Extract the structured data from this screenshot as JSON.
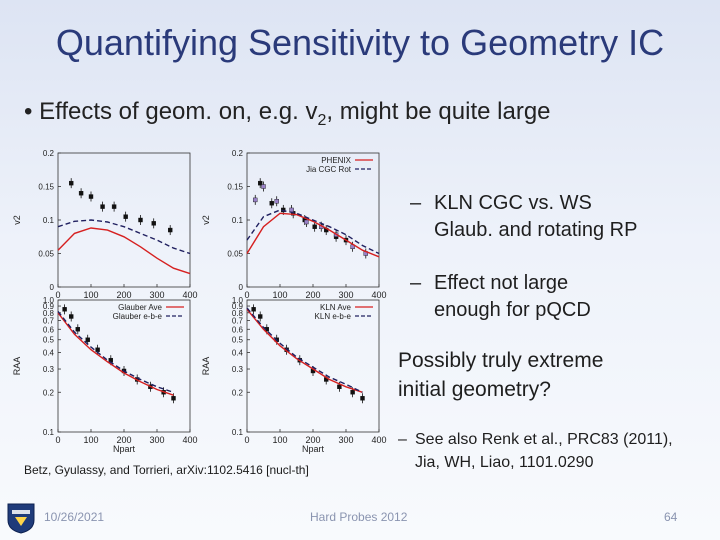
{
  "slide": {
    "title": "Quantifying Sensitivity to Geometry IC",
    "bullet": {
      "text_before": "Effects of geom. on, e.g. v",
      "subscript": "2",
      "text_after": ", might be quite large",
      "marker": "•"
    },
    "dash_items": [
      {
        "marker": "–",
        "lines": [
          "KLN CGC vs. WS",
          "Glaub. and rotating RP"
        ]
      },
      {
        "marker": "–",
        "lines": [
          "Effect not large",
          "enough for pQCD"
        ]
      }
    ],
    "para_lines": [
      "Possibly truly extreme",
      "initial geometry?"
    ],
    "small_item": {
      "marker": "–",
      "lines": [
        "See also Renk et al., PRC83 (2011),",
        "Jia, WH, Liao, 1101.0290"
      ]
    },
    "citation": "Betz, Gyulassy, and Torrieri, arXiv:1102.5416 [nucl-th]",
    "footer": {
      "date": "10/26/2021",
      "center": "Hard Probes 2012",
      "page": "64"
    }
  },
  "chart_data": [
    {
      "type": "scatter",
      "panel": "top-left",
      "xlabel": "",
      "ylabel": "v2",
      "xlim": [
        0,
        400
      ],
      "ylim": [
        0,
        0.2
      ],
      "xticks": [
        "0",
        "100",
        "200",
        "300",
        "400"
      ],
      "yticks": [
        "0",
        "0.05",
        "0.1",
        "0.15",
        "0.2"
      ],
      "legend": [],
      "legend_position": "none",
      "series": [
        {
          "name": "data",
          "x": [
            40,
            70,
            100,
            135,
            170,
            205,
            250,
            290,
            340
          ],
          "y": [
            0.155,
            0.14,
            0.135,
            0.12,
            0.12,
            0.105,
            0.1,
            0.095,
            0.085
          ]
        },
        {
          "name": "Glauber Ave (solid)",
          "x": [
            0,
            50,
            100,
            150,
            200,
            250,
            300,
            350,
            400
          ],
          "y": [
            0.055,
            0.08,
            0.088,
            0.085,
            0.075,
            0.06,
            0.043,
            0.028,
            0.02
          ]
        },
        {
          "name": "Glauber e-b-e (dashed)",
          "x": [
            0,
            50,
            100,
            150,
            200,
            250,
            300,
            350,
            400
          ],
          "y": [
            0.09,
            0.098,
            0.1,
            0.097,
            0.09,
            0.08,
            0.07,
            0.058,
            0.05
          ]
        }
      ]
    },
    {
      "type": "scatter",
      "panel": "top-right",
      "xlabel": "",
      "ylabel": "v2",
      "xlim": [
        0,
        400
      ],
      "ylim": [
        0,
        0.2
      ],
      "xticks": [
        "0",
        "100",
        "200",
        "300",
        "400"
      ],
      "yticks": [
        "0",
        "0.05",
        "0.1",
        "0.15",
        "0.2"
      ],
      "legend": [
        "PHENIX",
        "Jia CGC Rot"
      ],
      "legend_position": "top-right",
      "series": [
        {
          "name": "PHENIX",
          "x": [
            40,
            75,
            110,
            140,
            175,
            205,
            240,
            270,
            300
          ],
          "y": [
            0.155,
            0.125,
            0.115,
            0.11,
            0.1,
            0.09,
            0.085,
            0.075,
            0.07
          ]
        },
        {
          "name": "Jia CGC Rot",
          "x": [
            25,
            50,
            90,
            135,
            180,
            225,
            270,
            320,
            360
          ],
          "y": [
            0.13,
            0.15,
            0.128,
            0.115,
            0.097,
            0.09,
            0.078,
            0.06,
            0.05
          ]
        },
        {
          "name": "KLN Ave (solid)",
          "x": [
            0,
            50,
            100,
            150,
            200,
            250,
            300,
            350,
            400
          ],
          "y": [
            0.05,
            0.09,
            0.11,
            0.108,
            0.098,
            0.085,
            0.07,
            0.055,
            0.045
          ]
        },
        {
          "name": "KLN e-b-e (dashed)",
          "x": [
            0,
            50,
            100,
            150,
            200,
            250,
            300,
            350,
            400
          ],
          "y": [
            0.07,
            0.105,
            0.115,
            0.11,
            0.1,
            0.09,
            0.078,
            0.062,
            0.05
          ]
        }
      ]
    },
    {
      "type": "scatter",
      "panel": "bottom-left",
      "xlabel": "Npart",
      "ylabel": "RAA",
      "xlim": [
        0,
        400
      ],
      "ylim": [
        0.1,
        1.0
      ],
      "yscale": "log",
      "xticks": [
        "0",
        "100",
        "200",
        "300",
        "400"
      ],
      "yticks": [
        "0.1",
        "0.2",
        "0.3",
        "0.4",
        "0.5",
        "0.6",
        "0.7",
        "0.8",
        "0.9",
        "1.0"
      ],
      "legend": [
        "Glauber Ave",
        "Glauber e-b-e"
      ],
      "legend_position": "top-right",
      "series": [
        {
          "name": "data",
          "x": [
            20,
            40,
            60,
            90,
            120,
            160,
            200,
            240,
            280,
            320,
            350
          ],
          "y": [
            0.85,
            0.75,
            0.6,
            0.5,
            0.42,
            0.35,
            0.29,
            0.25,
            0.22,
            0.2,
            0.18
          ]
        },
        {
          "name": "Glauber Ave",
          "x": [
            0,
            50,
            100,
            150,
            200,
            250,
            300,
            350
          ],
          "y": [
            0.8,
            0.55,
            0.42,
            0.34,
            0.28,
            0.24,
            0.21,
            0.19
          ]
        },
        {
          "name": "Glauber e-b-e",
          "x": [
            0,
            50,
            100,
            150,
            200,
            250,
            300,
            350
          ],
          "y": [
            0.82,
            0.57,
            0.44,
            0.35,
            0.29,
            0.25,
            0.22,
            0.2
          ]
        }
      ]
    },
    {
      "type": "scatter",
      "panel": "bottom-right",
      "xlabel": "Npart",
      "ylabel": "RAA",
      "xlim": [
        0,
        400
      ],
      "ylim": [
        0.1,
        1.0
      ],
      "yscale": "log",
      "xticks": [
        "0",
        "100",
        "200",
        "300",
        "400"
      ],
      "yticks": [
        "0.1",
        "0.2",
        "0.3",
        "0.4",
        "0.5",
        "0.6",
        "0.7",
        "0.8",
        "0.9",
        "1.0"
      ],
      "legend": [
        "KLN Ave",
        "KLN e-b-e"
      ],
      "legend_position": "top-right",
      "series": [
        {
          "name": "data",
          "x": [
            20,
            40,
            60,
            90,
            120,
            160,
            200,
            240,
            280,
            320,
            350
          ],
          "y": [
            0.85,
            0.75,
            0.6,
            0.5,
            0.42,
            0.35,
            0.29,
            0.25,
            0.22,
            0.2,
            0.18
          ]
        },
        {
          "name": "KLN Ave",
          "x": [
            0,
            50,
            100,
            150,
            200,
            250,
            300,
            350
          ],
          "y": [
            0.85,
            0.6,
            0.45,
            0.36,
            0.3,
            0.25,
            0.22,
            0.2
          ]
        },
        {
          "name": "KLN e-b-e",
          "x": [
            0,
            50,
            100,
            150,
            200,
            250,
            300,
            350
          ],
          "y": [
            0.87,
            0.62,
            0.47,
            0.37,
            0.31,
            0.26,
            0.23,
            0.2
          ]
        }
      ]
    }
  ]
}
